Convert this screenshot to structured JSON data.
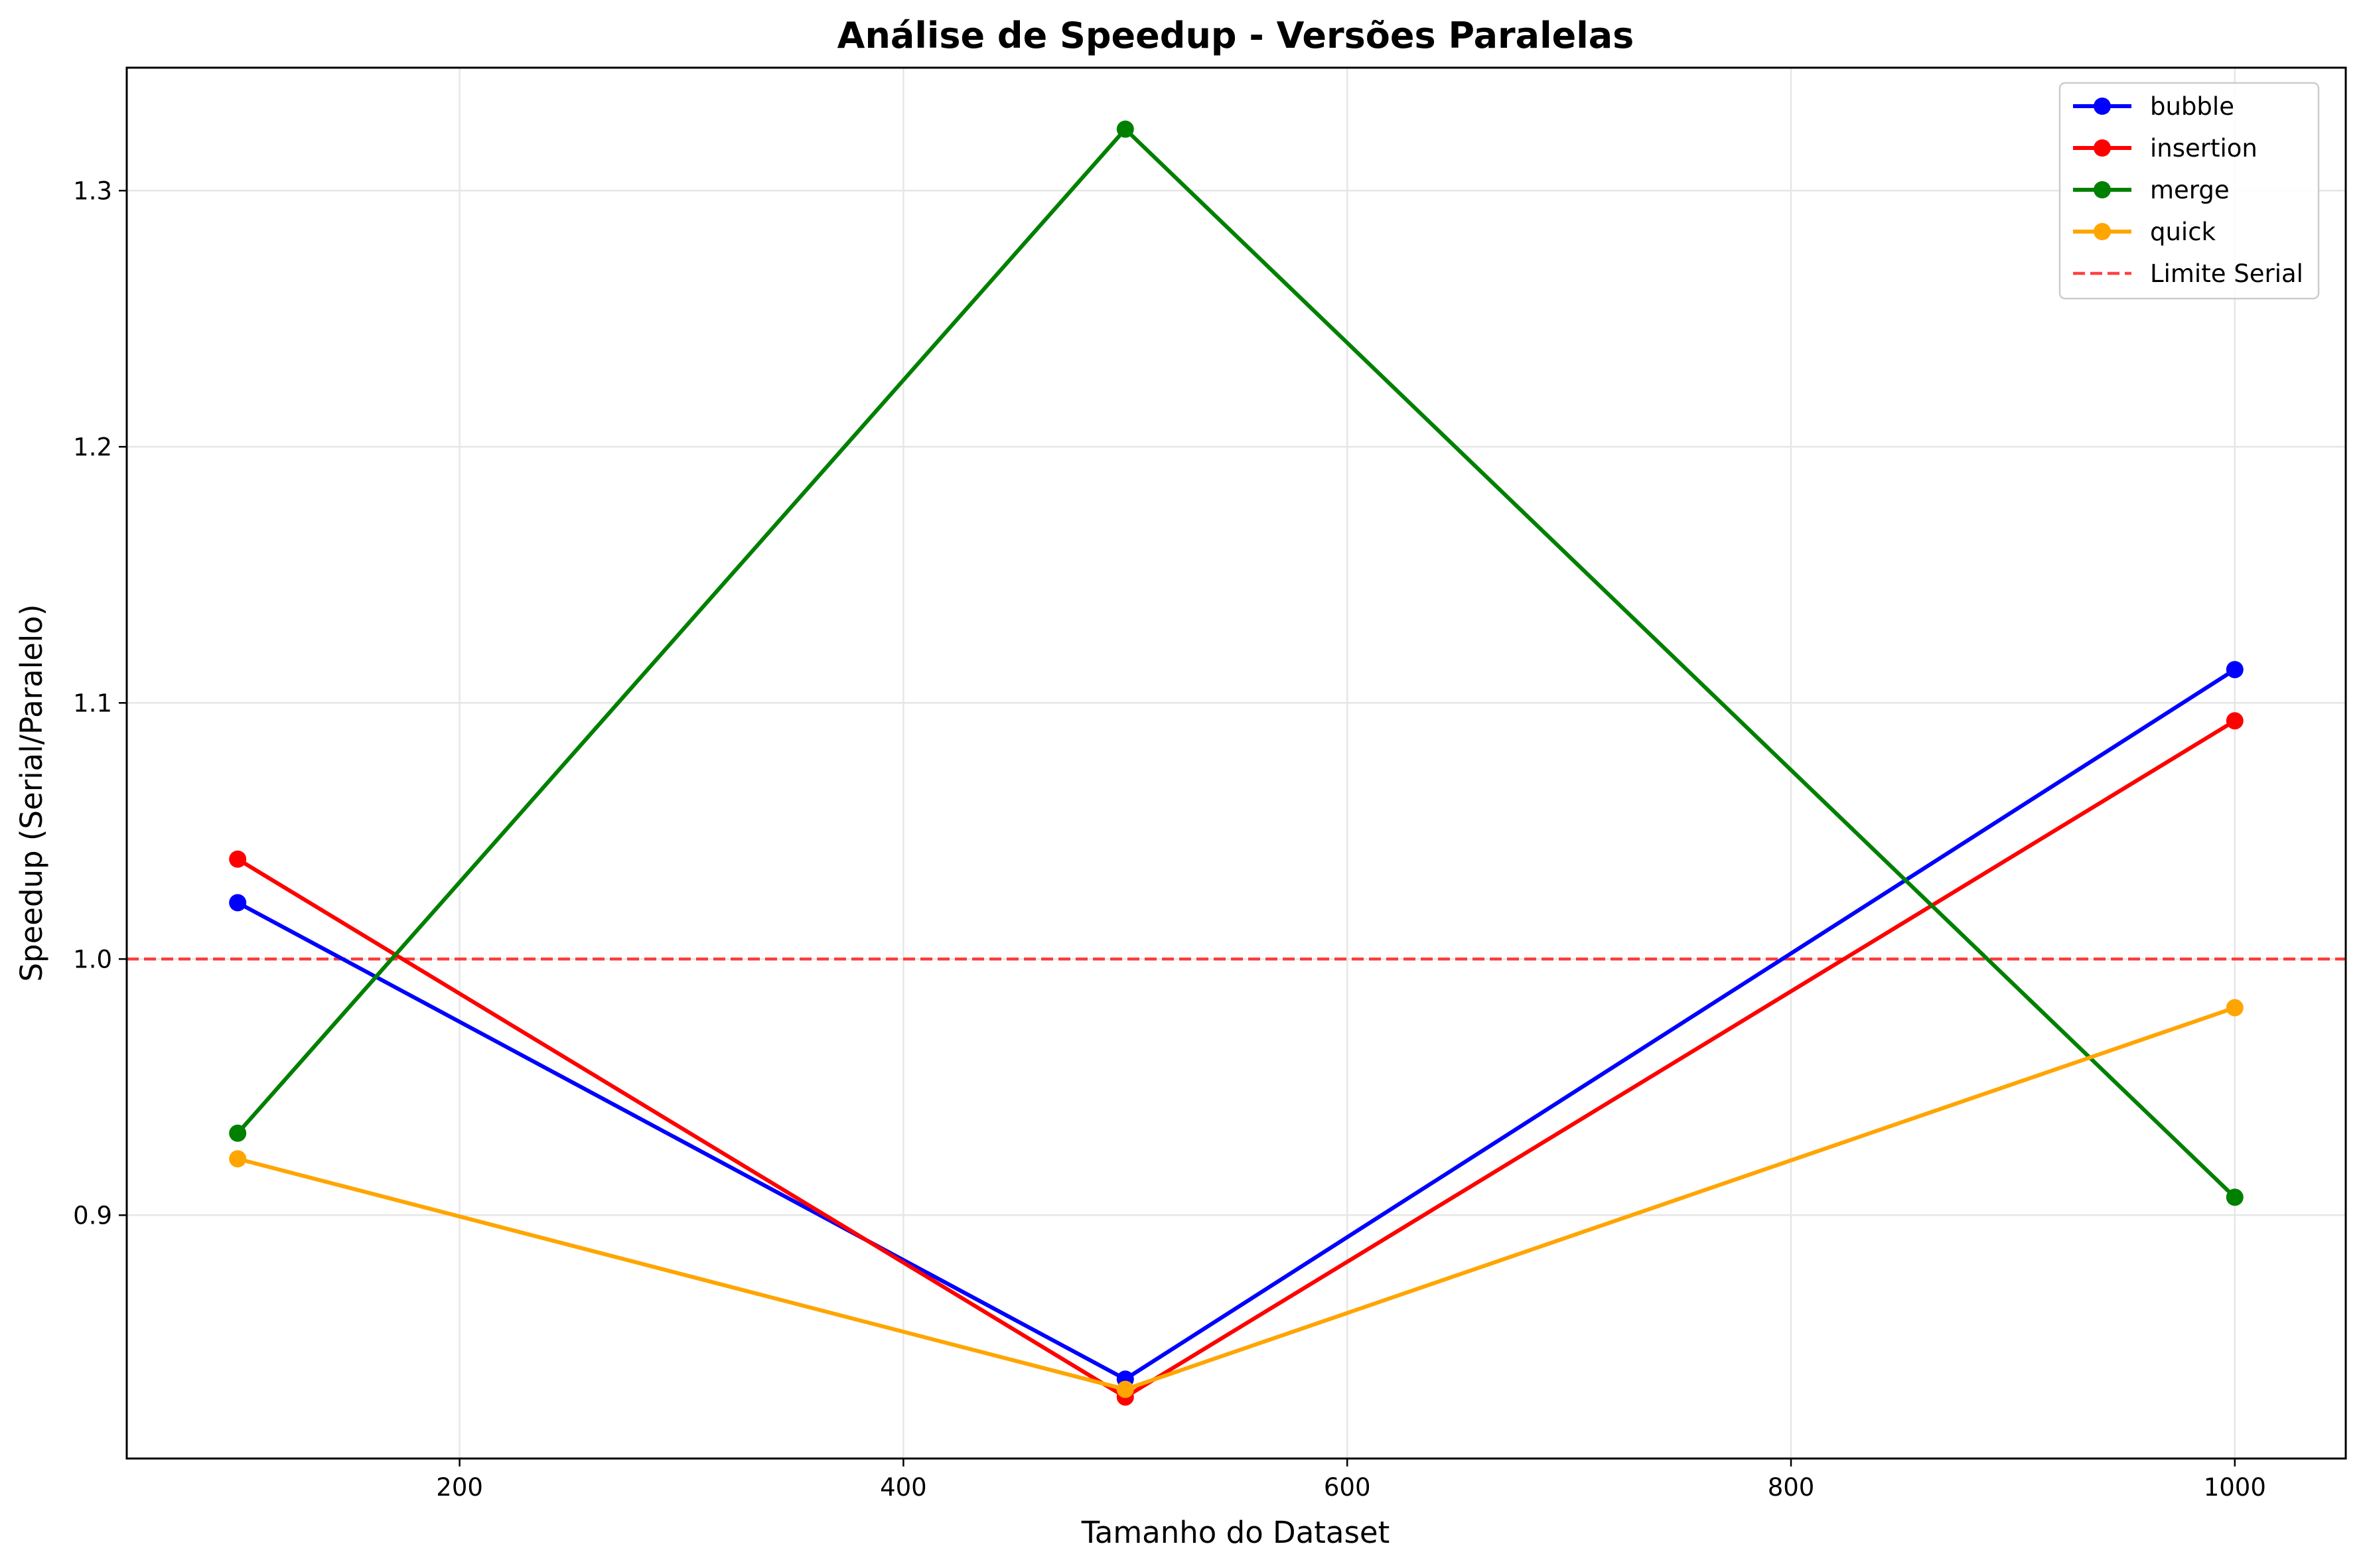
{
  "chart_data": {
    "type": "line",
    "title": "Análise de Speedup - Versões Paralelas",
    "xlabel": "Tamanho do Dataset",
    "ylabel": "Speedup (Serial/Paralelo)",
    "x": [
      100,
      500,
      1000
    ],
    "xlim": [
      50,
      1050
    ],
    "ylim": [
      0.805,
      1.348
    ],
    "xticks": [
      200,
      400,
      600,
      800,
      1000
    ],
    "yticks": [
      0.9,
      1.0,
      1.1,
      1.2,
      1.3
    ],
    "xtick_labels": [
      "200",
      "400",
      "600",
      "800",
      "1000"
    ],
    "ytick_labels": [
      "0.9",
      "1.0",
      "1.1",
      "1.2",
      "1.3"
    ],
    "grid": true,
    "legend_position": "top-right",
    "series": [
      {
        "name": "bubble",
        "color": "#0000ff",
        "values": [
          1.022,
          0.836,
          1.113
        ]
      },
      {
        "name": "insertion",
        "color": "#ff0000",
        "values": [
          1.039,
          0.829,
          1.093
        ]
      },
      {
        "name": "merge",
        "color": "#008000",
        "values": [
          0.932,
          1.324,
          0.907
        ]
      },
      {
        "name": "quick",
        "color": "#ffa500",
        "values": [
          0.922,
          0.832,
          0.981
        ]
      }
    ],
    "reference_line": {
      "name": "Limite Serial",
      "y": 1.0,
      "color": "#ff0000",
      "style": "dashed"
    }
  }
}
